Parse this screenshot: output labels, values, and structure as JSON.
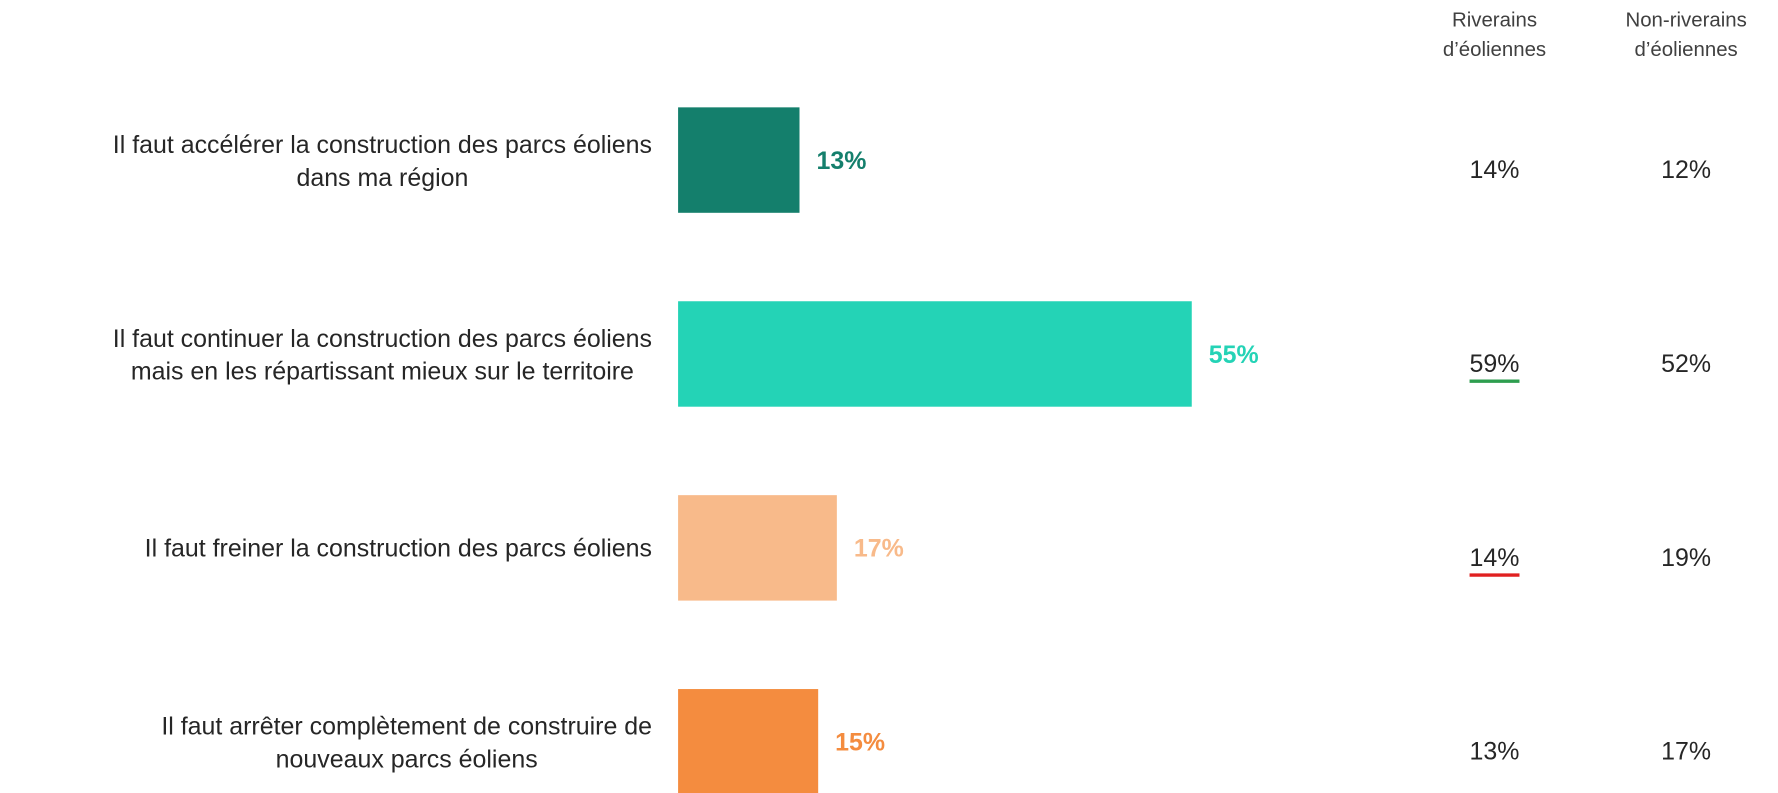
{
  "chart_data": {
    "type": "bar",
    "orientation": "horizontal",
    "categories": [
      "Il faut accélérer la construction des parcs éoliens\ndans ma région",
      "Il faut continuer la construction des parcs éoliens\nmais en les répartissant mieux sur le territoire",
      "Il faut freiner la construction des parcs éoliens",
      "Il faut arrêter complètement de construire de\nnouveaux parcs éoliens"
    ],
    "values": [
      13,
      55,
      17,
      15
    ],
    "value_labels": [
      "13%",
      "55%",
      "17%",
      "15%"
    ],
    "colors": [
      "#147f6c",
      "#24d3b6",
      "#f8ba8a",
      "#f48c3f"
    ],
    "table": {
      "columns": [
        {
          "header": "Riverains\nd’éoliennes",
          "values": [
            14,
            59,
            14,
            13
          ],
          "value_labels": [
            "14%",
            "59%",
            "14%",
            "13%"
          ],
          "underline_colors": [
            null,
            "#2e9e4f",
            "#e02020",
            null
          ]
        },
        {
          "header": "Non-riverains\nd’éoliennes",
          "values": [
            12,
            52,
            19,
            17
          ],
          "value_labels": [
            "12%",
            "52%",
            "19%",
            "17%"
          ],
          "underline_colors": [
            null,
            null,
            null,
            null
          ]
        }
      ]
    }
  }
}
